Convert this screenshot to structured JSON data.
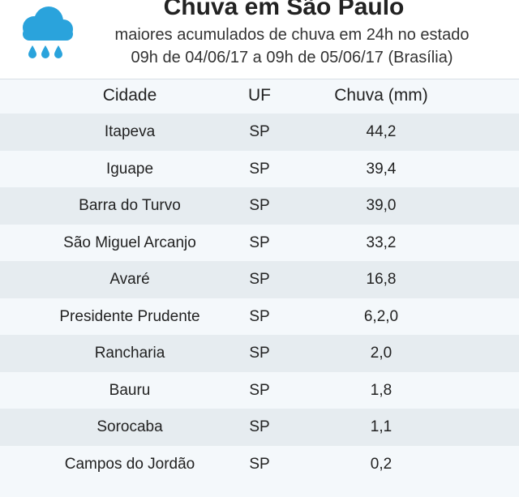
{
  "header": {
    "title": "Chuva em São Paulo",
    "subtitle": "maiores acumulados de chuva em 24h no estado",
    "period": "09h de 04/06/17 a 09h de 05/06/17 (Brasília)",
    "icon": "rain-cloud-icon",
    "icon_color": "#2aa3dc"
  },
  "table": {
    "columns": [
      "Cidade",
      "UF",
      "Chuva (mm)"
    ],
    "rows": [
      {
        "city": "Itapeva",
        "uf": "SP",
        "rain": "44,2"
      },
      {
        "city": "Iguape",
        "uf": "SP",
        "rain": "39,4"
      },
      {
        "city": "Barra do Turvo",
        "uf": "SP",
        "rain": "39,0"
      },
      {
        "city": "São Miguel Arcanjo",
        "uf": "SP",
        "rain": "33,2"
      },
      {
        "city": "Avaré",
        "uf": "SP",
        "rain": "16,8"
      },
      {
        "city": "Presidente Prudente",
        "uf": "SP",
        "rain": "6,2,0"
      },
      {
        "city": "Rancharia",
        "uf": "SP",
        "rain": "2,0"
      },
      {
        "city": "Bauru",
        "uf": "SP",
        "rain": "1,8"
      },
      {
        "city": "Sorocaba",
        "uf": "SP",
        "rain": "1,1"
      },
      {
        "city": "Campos do Jordão",
        "uf": "SP",
        "rain": "0,2"
      }
    ]
  }
}
